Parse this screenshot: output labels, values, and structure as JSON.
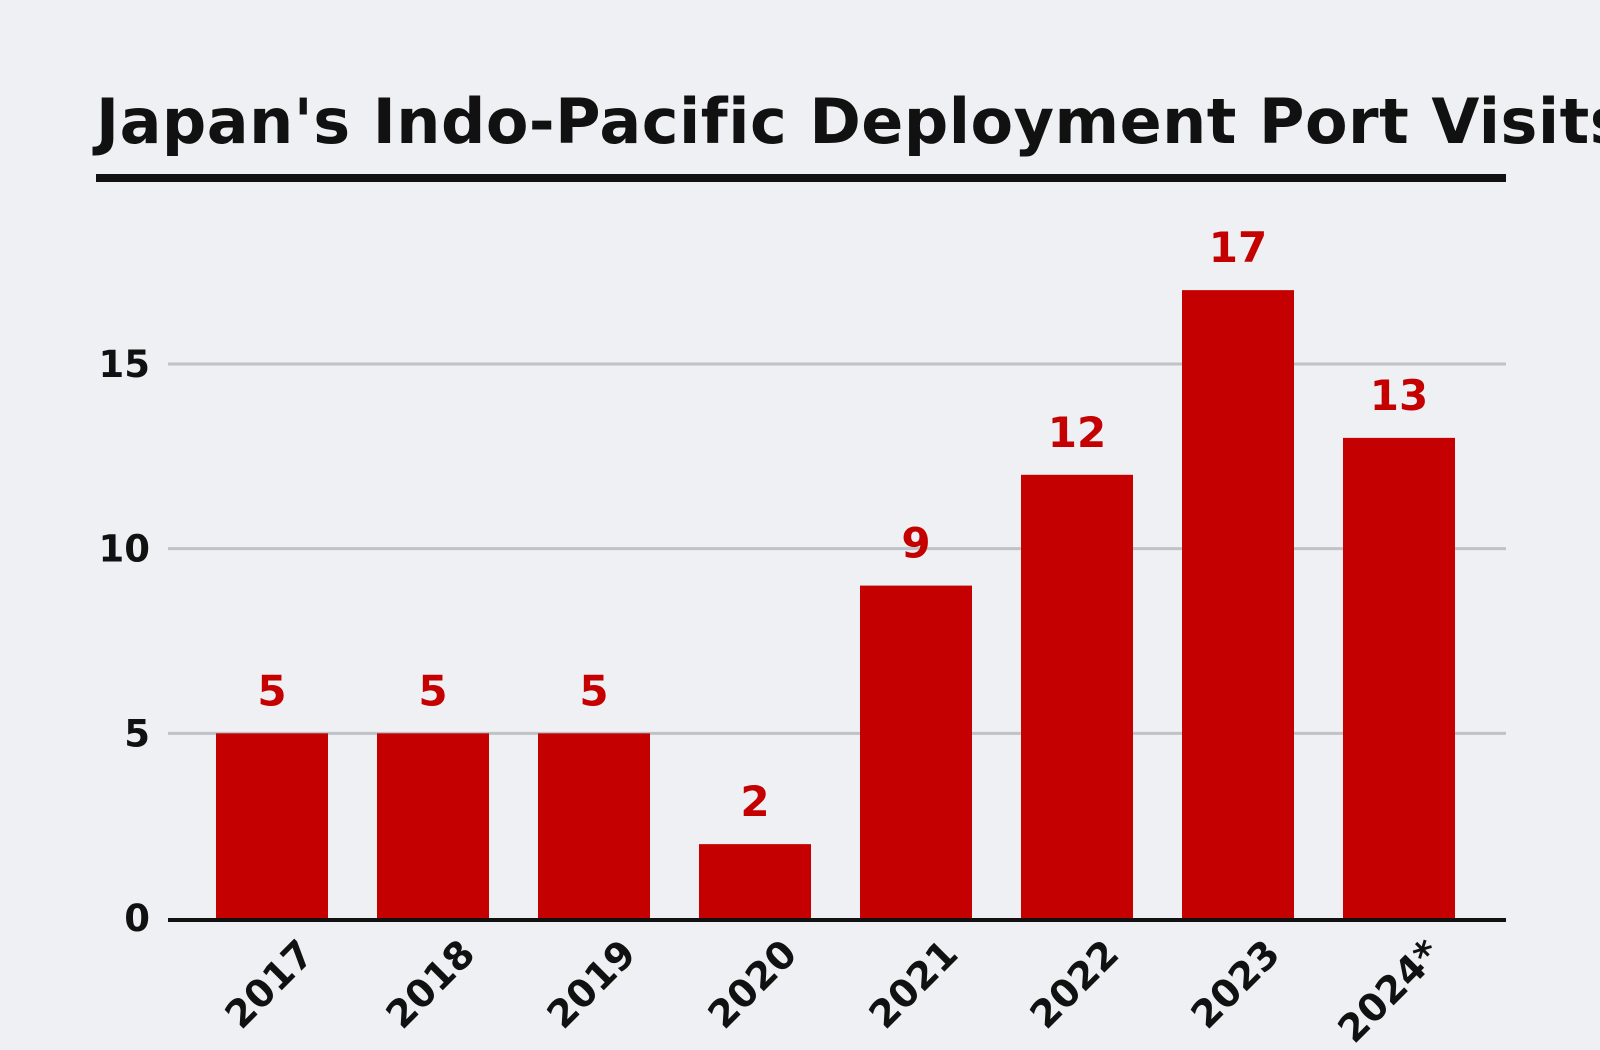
{
  "chart_data": {
    "type": "bar",
    "title": "Japan's Indo-Pacific Deployment Port Visits",
    "categories": [
      "2017",
      "2018",
      "2019",
      "2020",
      "2021",
      "2022",
      "2023",
      "2024*"
    ],
    "values": [
      5,
      5,
      5,
      2,
      9,
      12,
      17,
      13
    ],
    "yticks": [
      "0",
      "5",
      "10",
      "15"
    ],
    "ylim": [
      0,
      19
    ],
    "xlabel": "",
    "ylabel": "",
    "grid": true,
    "legend": "none",
    "bar_color": "#c40000",
    "label_color": "#c40000",
    "grid_color": "#bfc2c6",
    "axis_color": "#111111"
  }
}
